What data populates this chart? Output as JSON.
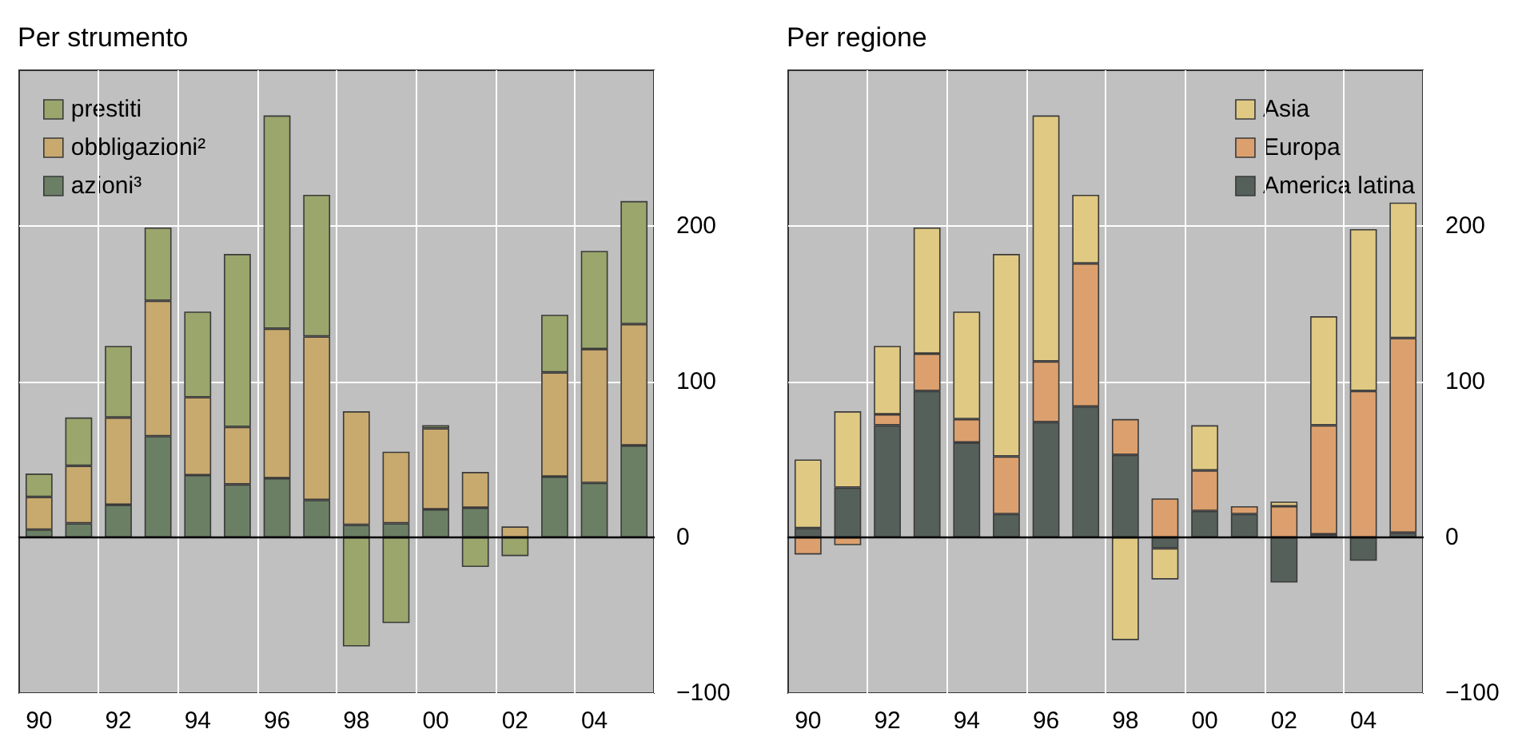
{
  "chart_data": [
    {
      "type": "bar",
      "title": "Per strumento",
      "stacked": true,
      "categories": [
        "90",
        null,
        "92",
        null,
        "94",
        null,
        "96",
        null,
        "98",
        null,
        "00",
        null,
        "02",
        null,
        "04",
        null
      ],
      "series": [
        {
          "name": "azioni³",
          "color": "#6b7f65",
          "values": [
            5,
            9,
            21,
            65,
            40,
            34,
            38,
            24,
            8,
            9,
            18,
            19,
            null,
            39,
            35,
            59
          ]
        },
        {
          "name": "obbligazioni²",
          "color": "#c8a96e",
          "values": [
            21,
            37,
            56,
            87,
            50,
            37,
            96,
            105,
            73,
            46,
            52,
            23,
            7,
            67,
            86,
            78
          ]
        },
        {
          "name": "prestiti",
          "color": "#9aa66c",
          "values": [
            15,
            31,
            46,
            47,
            55,
            111,
            137,
            91,
            -70,
            -55,
            2,
            -19,
            -12,
            37,
            63,
            79
          ]
        }
      ],
      "ylim": [
        -100,
        300
      ],
      "yticks": [
        {
          "value": -100,
          "label": "−100"
        },
        0,
        100,
        200
      ],
      "grid": true,
      "legend": "top left"
    },
    {
      "type": "bar",
      "title": "Per regione",
      "stacked": true,
      "categories": [
        "90",
        null,
        "92",
        null,
        "94",
        null,
        "96",
        null,
        "98",
        null,
        "00",
        null,
        "02",
        null,
        "04",
        null
      ],
      "series": [
        {
          "name": "America latina",
          "color": "#56605a",
          "values": [
            6,
            32,
            72,
            94,
            61,
            15,
            74,
            84,
            53,
            -7,
            17,
            15,
            -29,
            2,
            -15,
            3
          ]
        },
        {
          "name": "Europa",
          "color": "#dca06e",
          "values": [
            -11,
            -5,
            7,
            24,
            15,
            37,
            39,
            92,
            23,
            25,
            26,
            5,
            20,
            70,
            94,
            125
          ]
        },
        {
          "name": "Asia",
          "color": "#e0c983",
          "values": [
            44,
            49,
            44,
            81,
            69,
            130,
            158,
            44,
            -66,
            -20,
            29,
            null,
            3,
            70,
            104,
            87
          ]
        }
      ],
      "ylim": [
        -100,
        300
      ],
      "yticks": [
        {
          "value": -100,
          "label": "−100"
        },
        0,
        100,
        200
      ],
      "grid": true,
      "legend": "top right"
    }
  ]
}
